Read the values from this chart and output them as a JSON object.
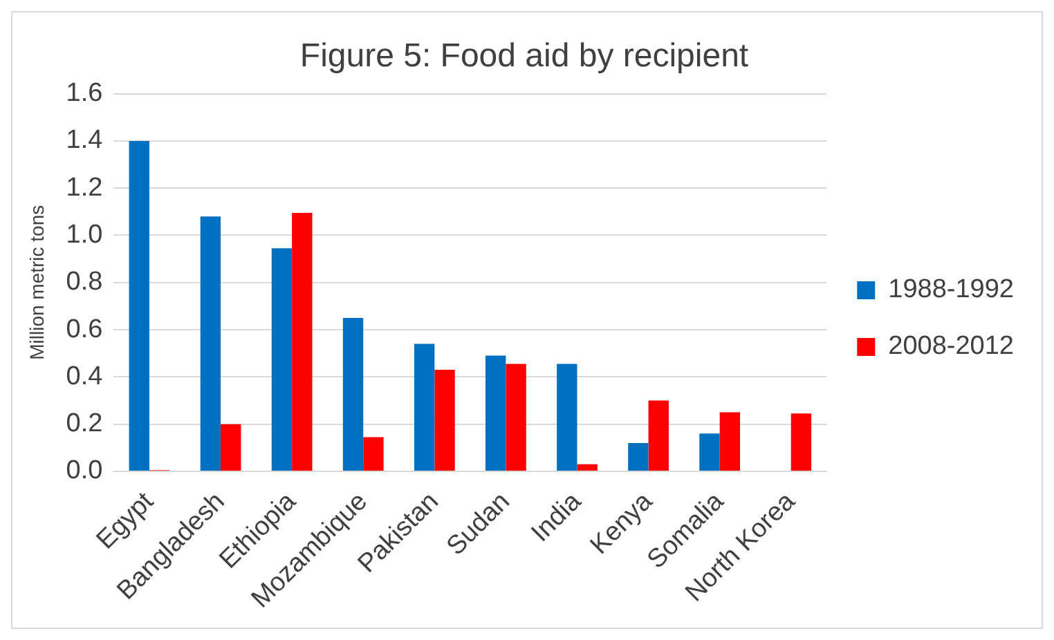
{
  "chart_data": {
    "type": "bar",
    "title": "Figure 5: Food aid by recipient",
    "ylabel": "Million metric tons",
    "categories": [
      "Egypt",
      "Bangladesh",
      "Ethiopia",
      "Mozambique",
      "Pakistan",
      "Sudan",
      "India",
      "Kenya",
      "Somalia",
      "North Korea"
    ],
    "series": [
      {
        "name": "1988-1992",
        "color": "#0070c0",
        "values": [
          1.4,
          1.08,
          0.945,
          0.65,
          0.54,
          0.49,
          0.455,
          0.12,
          0.16,
          null
        ]
      },
      {
        "name": "2008-2012",
        "color": "#ff0000",
        "values": [
          0.005,
          0.2,
          1.095,
          0.145,
          0.43,
          0.455,
          0.03,
          0.3,
          0.25,
          0.245
        ]
      }
    ],
    "ylim": [
      0,
      1.6
    ],
    "yticks": [
      {
        "value": 0,
        "label": "0.0"
      },
      {
        "value": 0.2,
        "label": "0.2"
      },
      {
        "value": 0.4,
        "label": "0.4"
      },
      {
        "value": 0.6,
        "label": "0.6"
      },
      {
        "value": 0.8,
        "label": "0.8"
      },
      {
        "value": 1,
        "label": "1.0"
      },
      {
        "value": 1.2,
        "label": "1.2"
      },
      {
        "value": 1.4,
        "label": "1.4"
      },
      {
        "value": 1.6,
        "label": "1.6"
      }
    ],
    "grid": "y",
    "legend": "right"
  }
}
